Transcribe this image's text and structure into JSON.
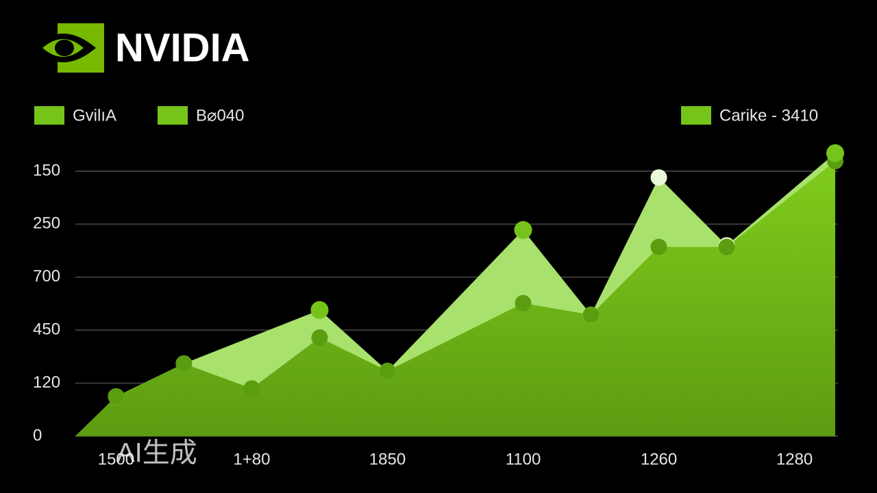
{
  "logo": "NVIDIA",
  "watermark": "AI生成",
  "chart_data": {
    "type": "area",
    "xlim": [
      -0.3,
      5.3
    ],
    "xticks": [
      {
        "value": 0,
        "label": "1500"
      },
      {
        "value": 1,
        "label": "1+80"
      },
      {
        "value": 2,
        "label": "1850"
      },
      {
        "value": 3,
        "label": "1100"
      },
      {
        "value": 4,
        "label": "1260"
      },
      {
        "value": 5,
        "label": "1280"
      }
    ],
    "ylim": [
      0,
      5.4
    ],
    "yticks": [
      {
        "value": 0,
        "label": "0"
      },
      {
        "value": 1,
        "label": "120"
      },
      {
        "value": 2,
        "label": "450"
      },
      {
        "value": 3,
        "label": "700"
      },
      {
        "value": 4,
        "label": "250"
      },
      {
        "value": 5,
        "label": "150"
      }
    ],
    "grid": true,
    "series": [
      {
        "name": "GvilıA",
        "color": "#a8e26c",
        "x": [
          0,
          0.5,
          1.5,
          2,
          3,
          3.5,
          4,
          4.5,
          5.3
        ],
        "values": [
          0.75,
          1.37,
          2.38,
          1.23,
          3.89,
          2.29,
          4.88,
          3.6,
          5.34
        ]
      },
      {
        "name": "B⌀040",
        "color": "#6cb114",
        "x": [
          0,
          0.5,
          1,
          1.5,
          2,
          3,
          3.5,
          4,
          4.5,
          5.3
        ],
        "values": [
          0.75,
          1.37,
          0.9,
          1.86,
          1.23,
          2.51,
          2.29,
          3.57,
          3.57,
          5.19
        ]
      },
      {
        "name": "Carike - 3410",
        "color": "#76c41a",
        "x": [
          1.5,
          3,
          5.3
        ],
        "values": [
          2.38,
          3.89,
          5.34
        ]
      }
    ]
  }
}
